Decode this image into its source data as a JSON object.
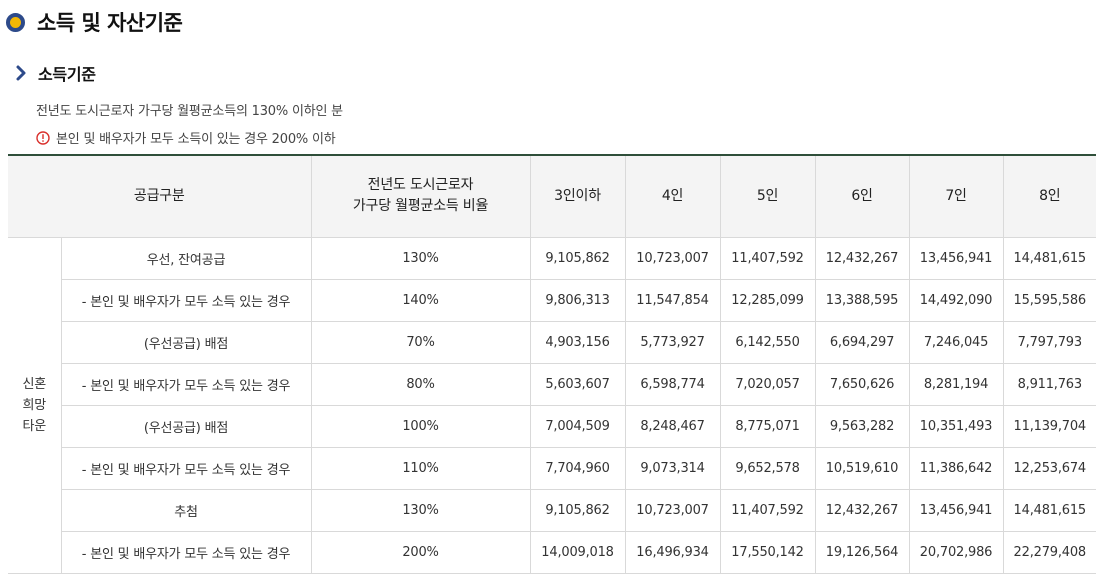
{
  "title": "소득 및 자산기준",
  "section": {
    "heading": "소득기준",
    "description": "전년도 도시근로자 가구당 월평균소득의 130% 이하인 분",
    "note": "본인 및 배우자가 모두 소득이 있는 경우 200% 이하"
  },
  "table": {
    "headers": {
      "supply_type": "공급구분",
      "ratio_line1": "전년도 도시근로자",
      "ratio_line2": "가구당 월평균소득 비율",
      "cols": [
        "3인이하",
        "4인",
        "5인",
        "6인",
        "7인",
        "8인"
      ]
    },
    "group_label": [
      "신혼",
      "희망",
      "타운"
    ],
    "rows": [
      {
        "label": "우선, 잔여공급",
        "ratio": "130%",
        "values": [
          "9,105,862",
          "10,723,007",
          "11,407,592",
          "12,432,267",
          "13,456,941",
          "14,481,615"
        ]
      },
      {
        "label": "- 본인 및 배우자가 모두 소득 있는 경우",
        "ratio": "140%",
        "values": [
          "9,806,313",
          "11,547,854",
          "12,285,099",
          "13,388,595",
          "14,492,090",
          "15,595,586"
        ]
      },
      {
        "label": "(우선공급) 배점",
        "ratio": "70%",
        "values": [
          "4,903,156",
          "5,773,927",
          "6,142,550",
          "6,694,297",
          "7,246,045",
          "7,797,793"
        ]
      },
      {
        "label": "- 본인 및 배우자가 모두 소득 있는 경우",
        "ratio": "80%",
        "values": [
          "5,603,607",
          "6,598,774",
          "7,020,057",
          "7,650,626",
          "8,281,194",
          "8,911,763"
        ]
      },
      {
        "label": "(우선공급) 배점",
        "ratio": "100%",
        "values": [
          "7,004,509",
          "8,248,467",
          "8,775,071",
          "9,563,282",
          "10,351,493",
          "11,139,704"
        ]
      },
      {
        "label": "- 본인 및 배우자가 모두 소득 있는 경우",
        "ratio": "110%",
        "values": [
          "7,704,960",
          "9,073,314",
          "9,652,578",
          "10,519,610",
          "11,386,642",
          "12,253,674"
        ]
      },
      {
        "label": "추첨",
        "ratio": "130%",
        "values": [
          "9,105,862",
          "10,723,007",
          "11,407,592",
          "12,432,267",
          "13,456,941",
          "14,481,615"
        ]
      },
      {
        "label": "- 본인 및 배우자가 모두 소득 있는 경우",
        "ratio": "200%",
        "values": [
          "14,009,018",
          "16,496,934",
          "17,550,142",
          "19,126,564",
          "20,702,986",
          "22,279,408"
        ]
      }
    ]
  },
  "colors": {
    "title_bullet_ring": "#2d4a8a",
    "title_bullet_fill": "#f2b705",
    "chevron": "#2d4a8a",
    "warning": "#d9302c",
    "table_top_border": "#2f4f3a",
    "header_bg": "#f4f4f4"
  },
  "icons": [
    "title-bullet-icon",
    "chevron-right-icon",
    "warning-circle-icon"
  ]
}
